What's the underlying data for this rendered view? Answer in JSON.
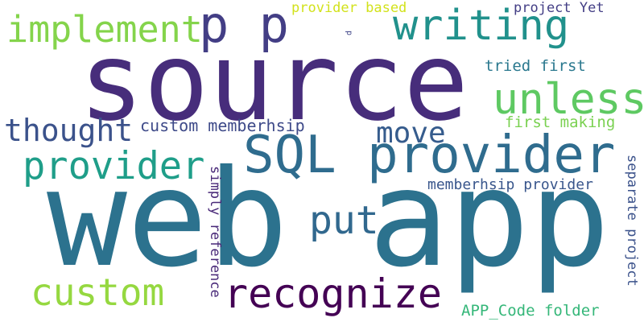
{
  "words": [
    {
      "text": "web app",
      "color": "#2c728e"
    },
    {
      "text": "source",
      "color": "#472d7b"
    },
    {
      "text": "SQL provider",
      "color": "#2f6c8e"
    },
    {
      "text": "p p",
      "color": "#433e85"
    },
    {
      "text": "writing",
      "color": "#21918c"
    },
    {
      "text": "implement",
      "color": "#84d44b"
    },
    {
      "text": "unless",
      "color": "#5ec962"
    },
    {
      "text": "provider",
      "color": "#1f9e89"
    },
    {
      "text": "recognize",
      "color": "#440154"
    },
    {
      "text": "custom",
      "color": "#95d840"
    },
    {
      "text": "put",
      "color": "#31688e"
    },
    {
      "text": "thought",
      "color": "#3b528b"
    },
    {
      "text": "move",
      "color": "#365c8d"
    },
    {
      "text": "custom memberhsip",
      "color": "#3e4a89"
    },
    {
      "text": "first making",
      "color": "#7ad151"
    },
    {
      "text": "tried first",
      "color": "#2a788e"
    },
    {
      "text": "memberhsip provider",
      "color": "#39568c"
    },
    {
      "text": "APP_Code folder",
      "color": "#35b779"
    },
    {
      "text": "provider based",
      "color": "#d2e21b"
    },
    {
      "text": "project Yet",
      "color": "#433e85"
    },
    {
      "text": "p",
      "color": "#404688"
    },
    {
      "text": "simply reference",
      "color": "#482878"
    },
    {
      "text": "separate project",
      "color": "#3b528b"
    }
  ]
}
